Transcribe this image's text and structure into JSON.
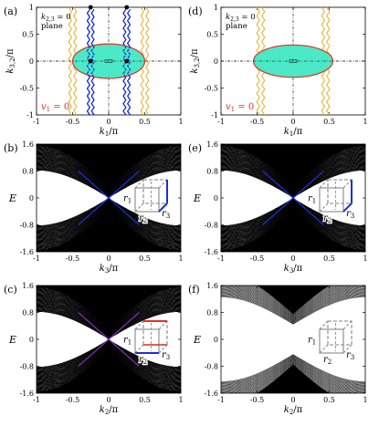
{
  "figure": {
    "panels": [
      {
        "id": "a",
        "tag": "(a)",
        "type": "nodal-line-plane",
        "inset_text": [
          "k2,3 = 0",
          "plane"
        ],
        "inset_sub": "2,3",
        "inset_plane_word": "plane",
        "v1_text": "v1 = 0",
        "xlabel": "k1/π",
        "ylabel": "k3,2/π",
        "xticks": [
          "-1",
          "-0.5",
          "0",
          "0.5",
          "1"
        ],
        "yticks": [
          "-1",
          "-0.5",
          "0",
          "0.5",
          "1"
        ],
        "xlim": [
          -1,
          1
        ],
        "ylim": [
          -1,
          1
        ],
        "ellipse": {
          "a": 0.5,
          "b": 0.32,
          "fill": "#41e8c4",
          "stroke": "#e03226"
        },
        "yellow_lines_x": [
          -0.5,
          0.5
        ],
        "blue_lines_x": [
          -0.25,
          0.25
        ],
        "black_dots": [
          [
            -0.25,
            1
          ],
          [
            0.25,
            1
          ],
          [
            -0.25,
            0
          ],
          [
            0.25,
            0
          ]
        ]
      },
      {
        "id": "d",
        "tag": "(d)",
        "type": "nodal-line-plane",
        "inset_text": [
          "k2,3 = 0",
          "plane"
        ],
        "inset_sub": "2,3",
        "inset_plane_word": "plane",
        "v1_text": "v1 = 0",
        "xlabel": "k1/π",
        "ylabel": "k3,2/π",
        "xticks": [
          "-1",
          "-0.5",
          "0",
          "0.5",
          "1"
        ],
        "yticks": [
          "-1",
          "-0.5",
          "0",
          "0.5",
          "1"
        ],
        "xlim": [
          -1,
          1
        ],
        "ylim": [
          -1,
          1
        ],
        "ellipse": {
          "a": 0.55,
          "b": 0.3,
          "fill": "#41e8c4",
          "stroke": "#e03226"
        },
        "yellow_lines_x": [
          -0.45,
          0.45
        ],
        "blue_lines_x": [],
        "black_dots": []
      },
      {
        "id": "b",
        "tag": "(b)",
        "type": "band",
        "xlabel": "k3/π",
        "ylabel": "E",
        "xvar": "3",
        "xticks": [
          "-1",
          "-0.5",
          "0",
          "0.5",
          "1"
        ],
        "yticks": [
          "1.6",
          "0.8",
          "0",
          "-0.8",
          "-1.6"
        ],
        "xlim": [
          -1,
          1
        ],
        "ylim": [
          -1.6,
          1.6
        ],
        "gap": 0.0,
        "edge_color": "#1a2fd6",
        "cube_labels": [
          "r1",
          "r2",
          "r3"
        ],
        "cube_bond_colors": [
          "#1a2fd6"
        ]
      },
      {
        "id": "e",
        "tag": "(e)",
        "type": "band",
        "xlabel": "k3/π",
        "ylabel": "E",
        "xvar": "3",
        "xticks": [
          "-1",
          "-0.5",
          "0",
          "0.5",
          "1"
        ],
        "yticks": [
          "1.6",
          "0.8",
          "0",
          "-0.8",
          "-1.6"
        ],
        "xlim": [
          -1,
          1
        ],
        "ylim": [
          -1.6,
          1.6
        ],
        "gap": 0.0,
        "edge_color": "#1a2fd6",
        "cube_labels": [
          "r1",
          "r2",
          "r3"
        ],
        "cube_bond_colors": [
          "#1a2fd6"
        ]
      },
      {
        "id": "c",
        "tag": "(c)",
        "type": "band",
        "xlabel": "k2/π",
        "ylabel": "E",
        "xvar": "2",
        "xticks": [
          "-1",
          "-0.5",
          "0",
          "0.5",
          "1"
        ],
        "yticks": [
          "1.6",
          "0.8",
          "0",
          "-0.8",
          "-1.6"
        ],
        "xlim": [
          -1,
          1
        ],
        "ylim": [
          -1.6,
          1.6
        ],
        "gap": 0.0,
        "edge_color": "#7a2fb0",
        "cube_labels": [
          "r1",
          "r2",
          "r3"
        ],
        "cube_bond_colors": [
          "#e03226",
          "#1a2fd6"
        ]
      },
      {
        "id": "f",
        "tag": "(f)",
        "type": "band",
        "xlabel": "k2/π",
        "ylabel": "E",
        "xvar": "2",
        "xticks": [
          "-1",
          "-0.5",
          "0",
          "0.5",
          "1"
        ],
        "yticks": [
          "1.6",
          "0.8",
          "0",
          "-0.8",
          "-1.6"
        ],
        "xlim": [
          -1,
          1
        ],
        "ylim": [
          -1.6,
          1.6
        ],
        "gap": 0.5,
        "edge_color": "",
        "cube_labels": [
          "r1",
          "r2",
          "r3"
        ],
        "cube_bond_colors": []
      }
    ]
  }
}
